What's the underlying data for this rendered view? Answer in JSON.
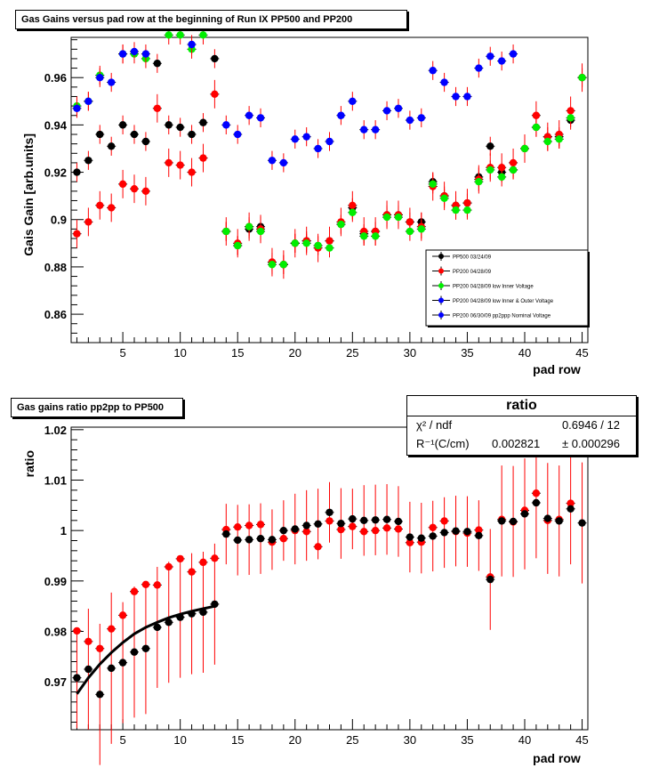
{
  "chart_data": [
    {
      "type": "scatter",
      "title": "Gas Gains versus pad row at the beginning of Run IX PP500 and PP200",
      "xlabel": "pad row",
      "ylabel": "Gais Gain [arb.units]",
      "xlim": [
        0.5,
        45.5
      ],
      "ylim": [
        0.848,
        0.977
      ],
      "x_ticks": [
        5,
        10,
        15,
        20,
        25,
        30,
        35,
        40,
        45
      ],
      "x_tick_labels": [
        "5",
        "10",
        "15",
        "20",
        "25",
        "30",
        "35",
        "40",
        "45"
      ],
      "y_ticks": [
        0.86,
        0.88,
        0.9,
        0.92,
        0.94,
        0.96
      ],
      "y_tick_labels": [
        "0.86",
        "0.88",
        "0.9",
        "0.92",
        "0.94",
        "0.96"
      ],
      "legend_position": "bottom-right",
      "series": [
        {
          "name": "PP500 03/24/09",
          "color": "#000000",
          "err": 0.004,
          "values": [
            0.92,
            0.925,
            0.936,
            0.931,
            0.94,
            0.936,
            0.933,
            0.966,
            0.94,
            0.939,
            0.936,
            0.941,
            0.968,
            0.895,
            0.889,
            0.896,
            0.897,
            0.882,
            0.881,
            0.89,
            0.891,
            0.889,
            0.891,
            0.898,
            0.905,
            0.894,
            0.895,
            0.902,
            0.902,
            0.899,
            0.899,
            0.916,
            0.91,
            0.906,
            0.907,
            0.918,
            0.931,
            0.92,
            0.921,
            0.93,
            0.939,
            0.935,
            0.935,
            0.942,
            0.96
          ]
        },
        {
          "name": "PP200 04/28/09",
          "color": "#ff0000",
          "err": 0.006,
          "values": [
            0.894,
            0.899,
            0.906,
            0.905,
            0.915,
            0.913,
            0.912,
            0.947,
            0.924,
            0.923,
            0.92,
            0.926,
            0.953,
            0.895,
            0.89,
            0.897,
            0.896,
            0.882,
            0.881,
            0.89,
            0.891,
            0.888,
            0.891,
            0.899,
            0.906,
            0.895,
            0.895,
            0.902,
            0.902,
            0.899,
            0.897,
            0.914,
            0.91,
            0.906,
            0.907,
            0.917,
            0.922,
            0.922,
            0.924,
            0.93,
            0.944,
            0.935,
            0.936,
            0.946,
            0.96
          ]
        },
        {
          "name": "PP200 04/28/09 low Inner Voltage",
          "color": "#00ee00",
          "err": 0.004,
          "values": [
            0.948,
            0.95,
            0.961,
            null,
            0.97,
            0.97,
            0.968,
            null,
            0.978,
            0.978,
            0.972,
            0.978,
            null,
            0.895,
            0.889,
            0.897,
            0.895,
            0.881,
            0.881,
            0.89,
            0.89,
            0.889,
            0.888,
            0.898,
            0.903,
            0.893,
            0.893,
            0.901,
            0.901,
            0.895,
            0.896,
            0.915,
            0.909,
            0.904,
            0.904,
            0.916,
            0.921,
            0.918,
            0.921,
            0.93,
            0.939,
            0.933,
            0.934,
            0.943,
            0.96
          ]
        },
        {
          "name": "PP200 04/28/09 low Inner & Outer Voltage",
          "color": "#0000ff",
          "err": 0.004,
          "values": []
        },
        {
          "name": "PP200 06/30/09 pp2ppp Nominal Voltage",
          "color": "#0000ff",
          "err": 0.004,
          "values": [
            0.947,
            0.95,
            0.96,
            0.958,
            0.97,
            0.971,
            0.97,
            null,
            null,
            null,
            0.974,
            null,
            null,
            0.94,
            0.936,
            0.944,
            0.943,
            0.925,
            0.924,
            0.934,
            0.935,
            0.93,
            0.933,
            0.944,
            0.95,
            0.938,
            0.938,
            0.946,
            0.947,
            0.942,
            0.943,
            0.963,
            0.958,
            0.952,
            0.952,
            0.964,
            0.969,
            0.967,
            0.97,
            null,
            null,
            null,
            null,
            null,
            null
          ]
        }
      ]
    },
    {
      "type": "scatter",
      "title": "Gas gains ratio pp2pp to PP500",
      "xlabel": "pad row",
      "ylabel": "ratio",
      "xlim": [
        0.5,
        45.5
      ],
      "ylim": [
        0.9605,
        1.0205
      ],
      "x_ticks": [
        5,
        10,
        15,
        20,
        25,
        30,
        35,
        40,
        45
      ],
      "x_tick_labels": [
        "5",
        "10",
        "15",
        "20",
        "25",
        "30",
        "35",
        "40",
        "45"
      ],
      "y_ticks": [
        0.97,
        0.98,
        0.99,
        1.0,
        1.01,
        1.02
      ],
      "y_tick_labels": [
        "0.97",
        "0.98",
        "0.99",
        "1",
        "1.01",
        "1.02"
      ],
      "stats": {
        "header": "ratio",
        "rows": [
          {
            "label": "χ² / ndf",
            "value": "0.6946 / 12"
          },
          {
            "label": "R⁻¹(C/cm)",
            "value": "0.002821",
            "error": "± 0.000296"
          }
        ]
      },
      "fit": {
        "x": [
          1,
          2,
          3,
          4,
          5,
          6,
          7,
          8,
          9,
          10,
          11,
          12,
          13
        ],
        "y": [
          0.9676,
          0.9708,
          0.9735,
          0.9758,
          0.9778,
          0.9795,
          0.9808,
          0.9818,
          0.9827,
          0.9834,
          0.984,
          0.9845,
          0.985
        ]
      },
      "series": [
        {
          "name": "black",
          "color": "#000000",
          "values": [
            0.9708,
            0.9725,
            0.9675,
            0.9727,
            0.9738,
            0.9759,
            0.9766,
            0.9808,
            0.9818,
            0.9828,
            0.9835,
            0.9838,
            0.9854,
            0.9993,
            0.9981,
            0.9982,
            0.9984,
            0.9982,
            1.0,
            1.0003,
            1.001,
            1.0013,
            1.0036,
            1.0014,
            1.0023,
            1.002,
            1.0021,
            1.0022,
            1.0018,
            0.9987,
            0.9985,
            0.9989,
            0.9996,
            0.9999,
            0.9998,
            0.999,
            0.9903,
            1.0019,
            1.0018,
            1.0033,
            1.0055,
            1.0024,
            1.0019,
            1.0043,
            1.0015
          ],
          "err": [
            0.01,
            0.012,
            0.014,
            0.015,
            0.012,
            0.013,
            0.013,
            0.012,
            0.012,
            0.012,
            0.012,
            0.012,
            0.012,
            0.006,
            0.007,
            0.007,
            0.007,
            0.006,
            0.006,
            0.007,
            0.007,
            0.007,
            0.006,
            0.007,
            0.006,
            0.007,
            0.007,
            0.007,
            0.007,
            0.007,
            0.007,
            0.007,
            0.007,
            0.007,
            0.007,
            0.007,
            0.01,
            0.011,
            0.011,
            0.011,
            0.011,
            0.011,
            0.011,
            0.011,
            0.012
          ]
        },
        {
          "name": "red",
          "color": "#ff0000",
          "values": [
            0.9801,
            0.978,
            0.9766,
            0.9805,
            0.9832,
            0.9879,
            0.9893,
            0.9892,
            0.9928,
            0.9944,
            0.9918,
            0.9937,
            0.9945,
            1.0002,
            1.0007,
            1.001,
            1.0012,
            0.9977,
            0.9984,
            1.0,
            0.9998,
            0.9968,
            1.0019,
            1.0002,
            1.0008,
            0.9998,
            1.0,
            1.0005,
            1.0003,
            0.9976,
            0.9977,
            1.0006,
            1.0019,
            0.9998,
            0.9995,
            1.0001,
            0.9908,
            1.0022,
            1.0017,
            1.004,
            1.0074,
            1.002,
            1.0022,
            1.0054,
            null
          ]
        }
      ]
    }
  ]
}
